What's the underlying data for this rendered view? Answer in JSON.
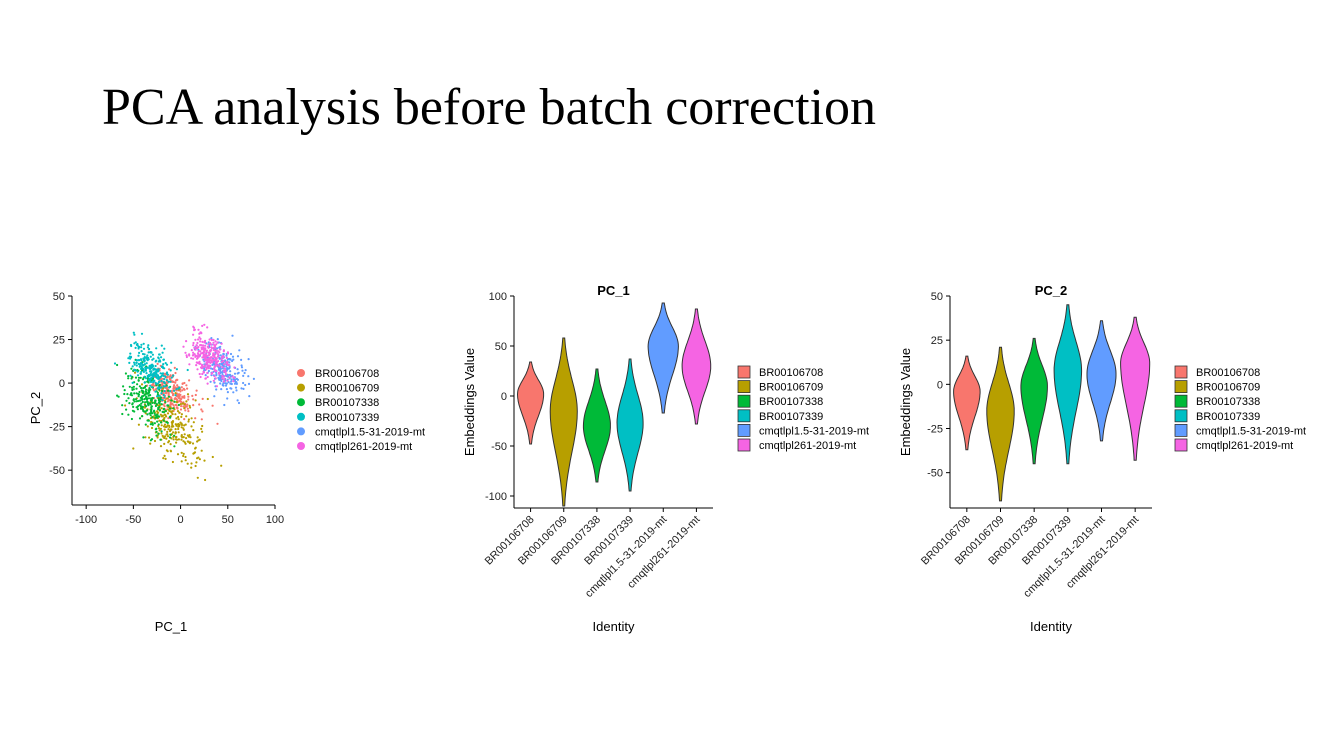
{
  "slide": {
    "title": "PCA analysis before batch correction"
  },
  "colors": {
    "BR00106708": "#F8766D",
    "BR00106709": "#B79F00",
    "BR00107338": "#00BA38",
    "BR00107339": "#00BFC4",
    "cmqtlpl1.5-31-2019-mt": "#619CFF",
    "cmqtlpl261-2019-mt": "#F564E3"
  },
  "chart_data": [
    {
      "type": "scatter",
      "title": "",
      "xlabel": "PC_1",
      "ylabel": "PC_2",
      "xlim": [
        -115,
        100
      ],
      "ylim": [
        -70,
        50
      ],
      "xticks": [
        "-100",
        "-50",
        "0",
        "50",
        "100"
      ],
      "xtick_values": [
        -100,
        -50,
        0,
        50,
        100
      ],
      "yticks": [
        "50",
        "25",
        "0",
        "-25",
        "-50"
      ],
      "ytick_values": [
        50,
        25,
        0,
        -25,
        -50
      ],
      "legend": [
        "BR00106708",
        "BR00106709",
        "BR00107338",
        "BR00107339",
        "cmqtlpl1.5-31-2019-mt",
        "cmqtlpl261-2019-mt"
      ],
      "series": [
        {
          "name": "BR00106708",
          "center": [
            -10,
            -5
          ],
          "spread": [
            20,
            10
          ]
        },
        {
          "name": "BR00106709",
          "center": [
            -10,
            -25
          ],
          "spread": [
            28,
            16
          ]
        },
        {
          "name": "BR00107338",
          "center": [
            -35,
            -10
          ],
          "spread": [
            22,
            14
          ]
        },
        {
          "name": "BR00107339",
          "center": [
            -30,
            8
          ],
          "spread": [
            20,
            10
          ]
        },
        {
          "name": "cmqtlpl1.5-31-2019-mt",
          "center": [
            45,
            8
          ],
          "spread": [
            20,
            12
          ]
        },
        {
          "name": "cmqtlpl261-2019-mt",
          "center": [
            30,
            15
          ],
          "spread": [
            18,
            10
          ]
        }
      ]
    },
    {
      "type": "violin",
      "title": "PC_1",
      "xlabel": "Identity",
      "ylabel": "Embeddings Value",
      "ylim": [
        -112,
        100
      ],
      "yticks": [
        "100",
        "50",
        "0",
        "-50",
        "-100"
      ],
      "ytick_values": [
        100,
        50,
        0,
        -50,
        -100
      ],
      "categories": [
        "BR00106708",
        "BR00106709",
        "BR00107338",
        "BR00107339",
        "cmqtlpl1.5-31-2019-mt",
        "cmqtlpl261-2019-mt"
      ],
      "legend": [
        "BR00106708",
        "BR00106709",
        "BR00107338",
        "BR00107339",
        "cmqtlpl1.5-31-2019-mt",
        "cmqtlpl261-2019-mt"
      ],
      "series": [
        {
          "name": "BR00106708",
          "min": -48,
          "max": 34,
          "median": 2,
          "width": 0.82
        },
        {
          "name": "BR00106709",
          "min": -110,
          "max": 58,
          "median": -15,
          "width": 0.85
        },
        {
          "name": "BR00107338",
          "min": -86,
          "max": 27,
          "median": -30,
          "width": 0.85
        },
        {
          "name": "BR00107339",
          "min": -95,
          "max": 37,
          "median": -27,
          "width": 0.82
        },
        {
          "name": "cmqtlpl1.5-31-2019-mt",
          "min": -17,
          "max": 93,
          "median": 50,
          "width": 0.95
        },
        {
          "name": "cmqtlpl261-2019-mt",
          "min": -28,
          "max": 87,
          "median": 30,
          "width": 0.9
        }
      ]
    },
    {
      "type": "violin",
      "title": "PC_2",
      "xlabel": "Identity",
      "ylabel": "Embeddings Value",
      "ylim": [
        -70,
        50
      ],
      "yticks": [
        "50",
        "25",
        "0",
        "-25",
        "-50"
      ],
      "ytick_values": [
        50,
        25,
        0,
        -25,
        -50
      ],
      "categories": [
        "BR00106708",
        "BR00106709",
        "BR00107338",
        "BR00107339",
        "cmqtlpl1.5-31-2019-mt",
        "cmqtlpl261-2019-mt"
      ],
      "legend": [
        "BR00106708",
        "BR00106709",
        "BR00107338",
        "BR00107339",
        "cmqtlpl1.5-31-2019-mt",
        "cmqtlpl261-2019-mt"
      ],
      "series": [
        {
          "name": "BR00106708",
          "min": -37,
          "max": 16,
          "median": -4,
          "width": 0.82
        },
        {
          "name": "BR00106709",
          "min": -66,
          "max": 21,
          "median": -15,
          "width": 0.85
        },
        {
          "name": "BR00107338",
          "min": -45,
          "max": 26,
          "median": -1,
          "width": 0.82
        },
        {
          "name": "BR00107339",
          "min": -45,
          "max": 45,
          "median": 8,
          "width": 0.85
        },
        {
          "name": "cmqtlpl1.5-31-2019-mt",
          "min": -32,
          "max": 36,
          "median": 6,
          "width": 0.9
        },
        {
          "name": "cmqtlpl261-2019-mt",
          "min": -43,
          "max": 38,
          "median": 12,
          "width": 0.9
        }
      ]
    }
  ]
}
